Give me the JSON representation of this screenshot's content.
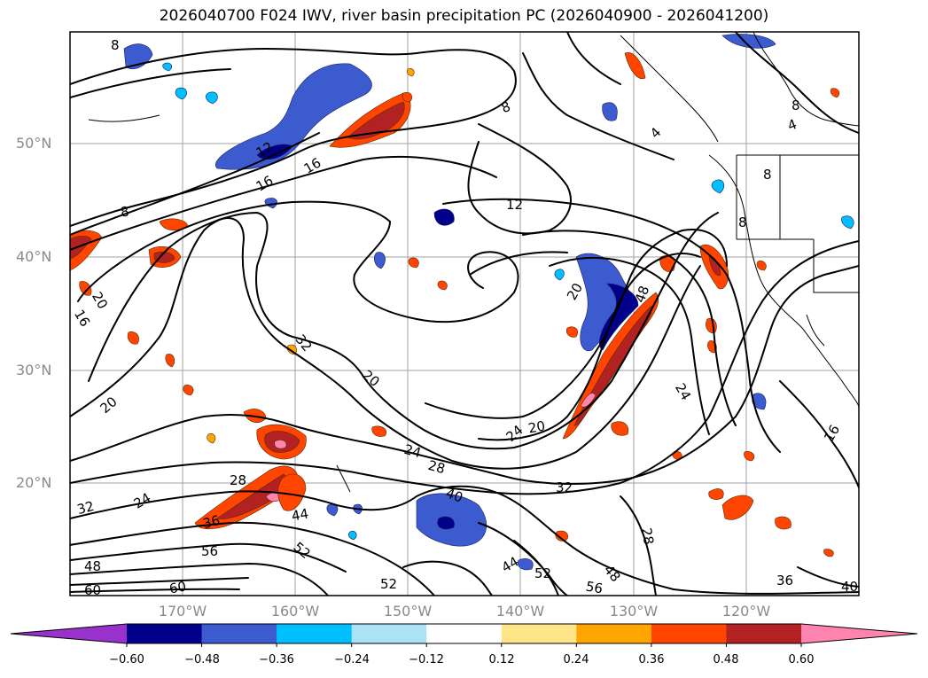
{
  "title": "2026040700 F024 IWV, river basin precipitation PC (2026040900 - 2026041200)",
  "lat_labels": [
    "50°N",
    "40°N",
    "30°N",
    "20°N"
  ],
  "lon_labels": [
    "170°W",
    "160°W",
    "150°W",
    "140°W",
    "130°W",
    "120°W"
  ],
  "colorbar": {
    "ticks": [
      "−0.60",
      "−0.48",
      "−0.36",
      "−0.24",
      "−0.12",
      "0.12",
      "0.24",
      "0.36",
      "0.48",
      "0.60"
    ],
    "colors": [
      "#9932cc",
      "#00008b",
      "#3b5bcf",
      "#00bfff",
      "#ade2f5",
      "#ffffff",
      "#ffe58a",
      "#ffa500",
      "#ff4500",
      "#b22222",
      "#ff85b0"
    ]
  },
  "contour_labels": [
    "8",
    "12",
    "16",
    "16",
    "20",
    "16",
    "20",
    "32",
    "20",
    "24",
    "28",
    "28",
    "24",
    "32",
    "36",
    "48",
    "56",
    "60",
    "60",
    "44",
    "52",
    "40",
    "52",
    "56",
    "48",
    "44",
    "52",
    "32",
    "8",
    "12",
    "20",
    "24",
    "20",
    "48",
    "28",
    "36",
    "40",
    "16",
    "24",
    "8",
    "8",
    "4",
    "8",
    "4",
    "8"
  ]
}
